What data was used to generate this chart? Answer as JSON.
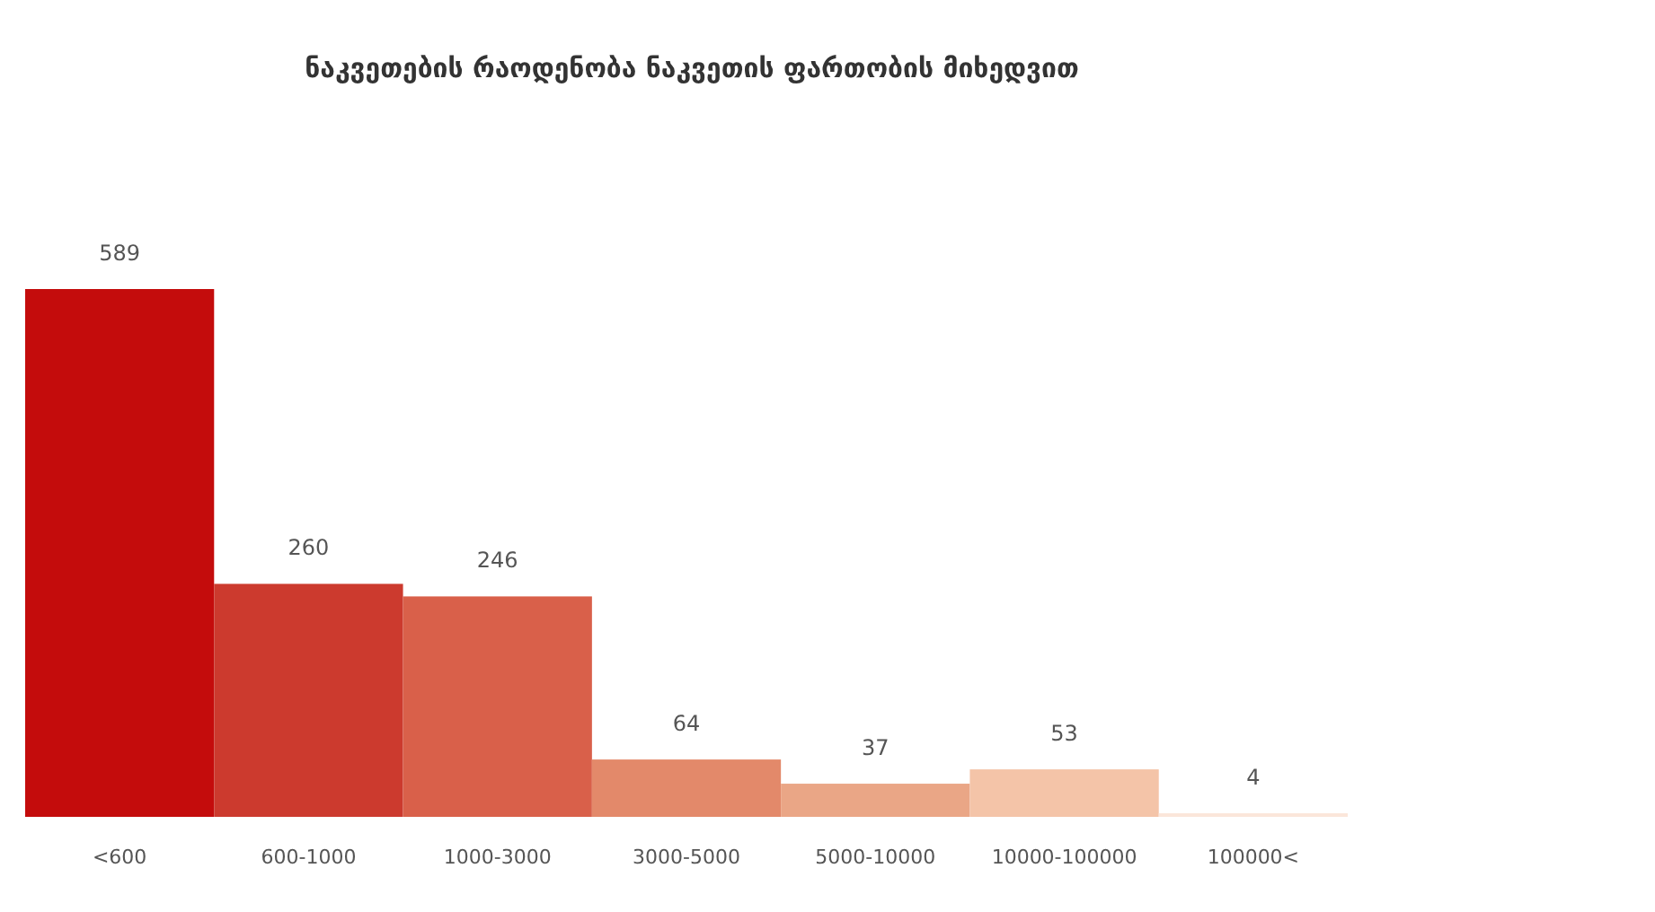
{
  "chart_data": {
    "type": "bar",
    "title": "ნაკვეთების რაოდენობა ნაკვეთის ფართობის მიხედვით",
    "categories": [
      "<600",
      "600-1000",
      "1000-3000",
      "3000-5000",
      "5000-10000",
      "10000-100000",
      "100000<"
    ],
    "values": [
      589,
      260,
      246,
      64,
      37,
      53,
      4
    ],
    "colors": [
      "#c40c0c",
      "#cc3a2e",
      "#d9604a",
      "#e3896a",
      "#eaa686",
      "#f4c4a8",
      "#fbe6da"
    ],
    "data_labels": true
  }
}
